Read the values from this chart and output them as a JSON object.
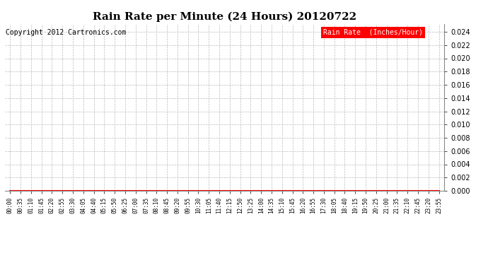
{
  "title": "Rain Rate per Minute (24 Hours) 20120722",
  "copyright_text": "Copyright 2012 Cartronics.com",
  "legend_label": "Rain Rate  (Inches/Hour)",
  "legend_bg": "#ff0000",
  "legend_text_color": "#ffffff",
  "ylim": [
    0.0,
    0.0252
  ],
  "yticks": [
    0.0,
    0.002,
    0.004,
    0.006,
    0.008,
    0.01,
    0.012,
    0.014,
    0.016,
    0.018,
    0.02,
    0.022,
    0.024
  ],
  "data_color": "#ff0000",
  "grid_color": "#bbbbbb",
  "bg_color": "#ffffff",
  "plot_bg_color": "#ffffff",
  "x_labels": [
    "00:00",
    "00:35",
    "01:10",
    "01:45",
    "02:20",
    "02:55",
    "03:30",
    "04:05",
    "04:40",
    "05:15",
    "05:50",
    "06:25",
    "07:00",
    "07:35",
    "08:10",
    "08:45",
    "09:20",
    "09:55",
    "10:30",
    "11:05",
    "11:40",
    "12:15",
    "12:50",
    "13:25",
    "14:00",
    "14:35",
    "15:10",
    "15:45",
    "16:20",
    "16:55",
    "17:30",
    "18:05",
    "18:40",
    "19:15",
    "19:50",
    "20:25",
    "21:00",
    "21:35",
    "22:10",
    "22:45",
    "23:20",
    "23:55"
  ],
  "y_values": [
    0.0,
    0.0,
    0.0,
    0.0,
    0.0,
    0.0,
    0.0,
    0.0,
    0.0,
    0.0,
    0.0,
    0.0,
    0.0,
    0.0,
    0.0,
    0.0,
    0.0,
    0.0,
    0.0,
    0.0,
    0.0,
    0.0,
    0.0,
    0.0,
    0.0,
    0.0,
    0.0,
    0.0,
    0.0,
    0.0,
    0.0,
    0.0,
    0.0,
    0.0,
    0.0,
    0.0,
    0.0,
    0.0,
    0.0,
    0.0,
    0.0,
    0.0
  ],
  "title_fontsize": 11,
  "copyright_fontsize": 7,
  "legend_fontsize": 7,
  "ytick_fontsize": 7,
  "xtick_fontsize": 5.5
}
